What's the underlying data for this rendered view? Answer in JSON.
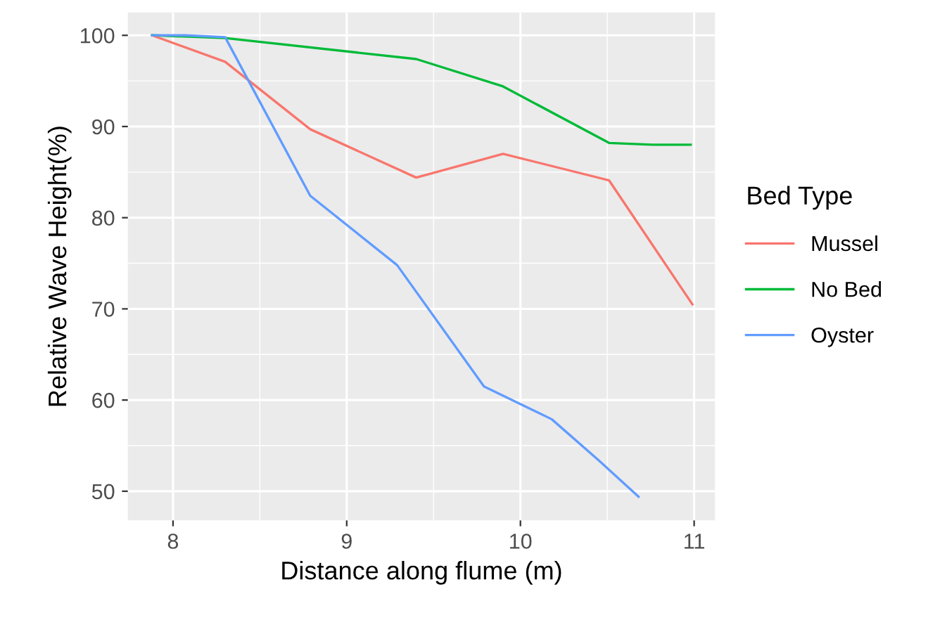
{
  "chart_data": {
    "type": "line",
    "xlabel": "Distance along flume (m)",
    "ylabel": "Relative Wave Height(%)",
    "legend_title": "Bed Type",
    "series": [
      {
        "name": "Mussel",
        "color": "#f8766d",
        "x": [
          7.88,
          8.3,
          8.79,
          9.4,
          9.9,
          10.51,
          10.99
        ],
        "values": [
          100,
          97.1,
          89.7,
          84.4,
          87.0,
          84.1,
          70.5
        ]
      },
      {
        "name": "No Bed",
        "color": "#00ba38",
        "x": [
          7.88,
          8.3,
          9.4,
          9.9,
          10.51,
          10.76,
          10.98
        ],
        "values": [
          100,
          99.7,
          97.4,
          94.4,
          88.2,
          88.0,
          88.0
        ]
      },
      {
        "name": "Oyster",
        "color": "#619cff",
        "x": [
          7.88,
          8.07,
          8.3,
          8.79,
          9.29,
          9.79,
          10.18,
          10.45,
          10.68
        ],
        "values": [
          100,
          100,
          99.8,
          82.4,
          74.8,
          61.5,
          57.9,
          53.4,
          49.4
        ]
      }
    ],
    "xlim": [
      7.74,
      11.12
    ],
    "ylim": [
      46.8,
      102.5
    ],
    "xticks": [
      8,
      9,
      10,
      11
    ],
    "yticks": [
      50,
      60,
      70,
      80,
      90,
      100
    ],
    "grid": true,
    "legend": "right",
    "marker": "none",
    "line_style": "solid"
  }
}
